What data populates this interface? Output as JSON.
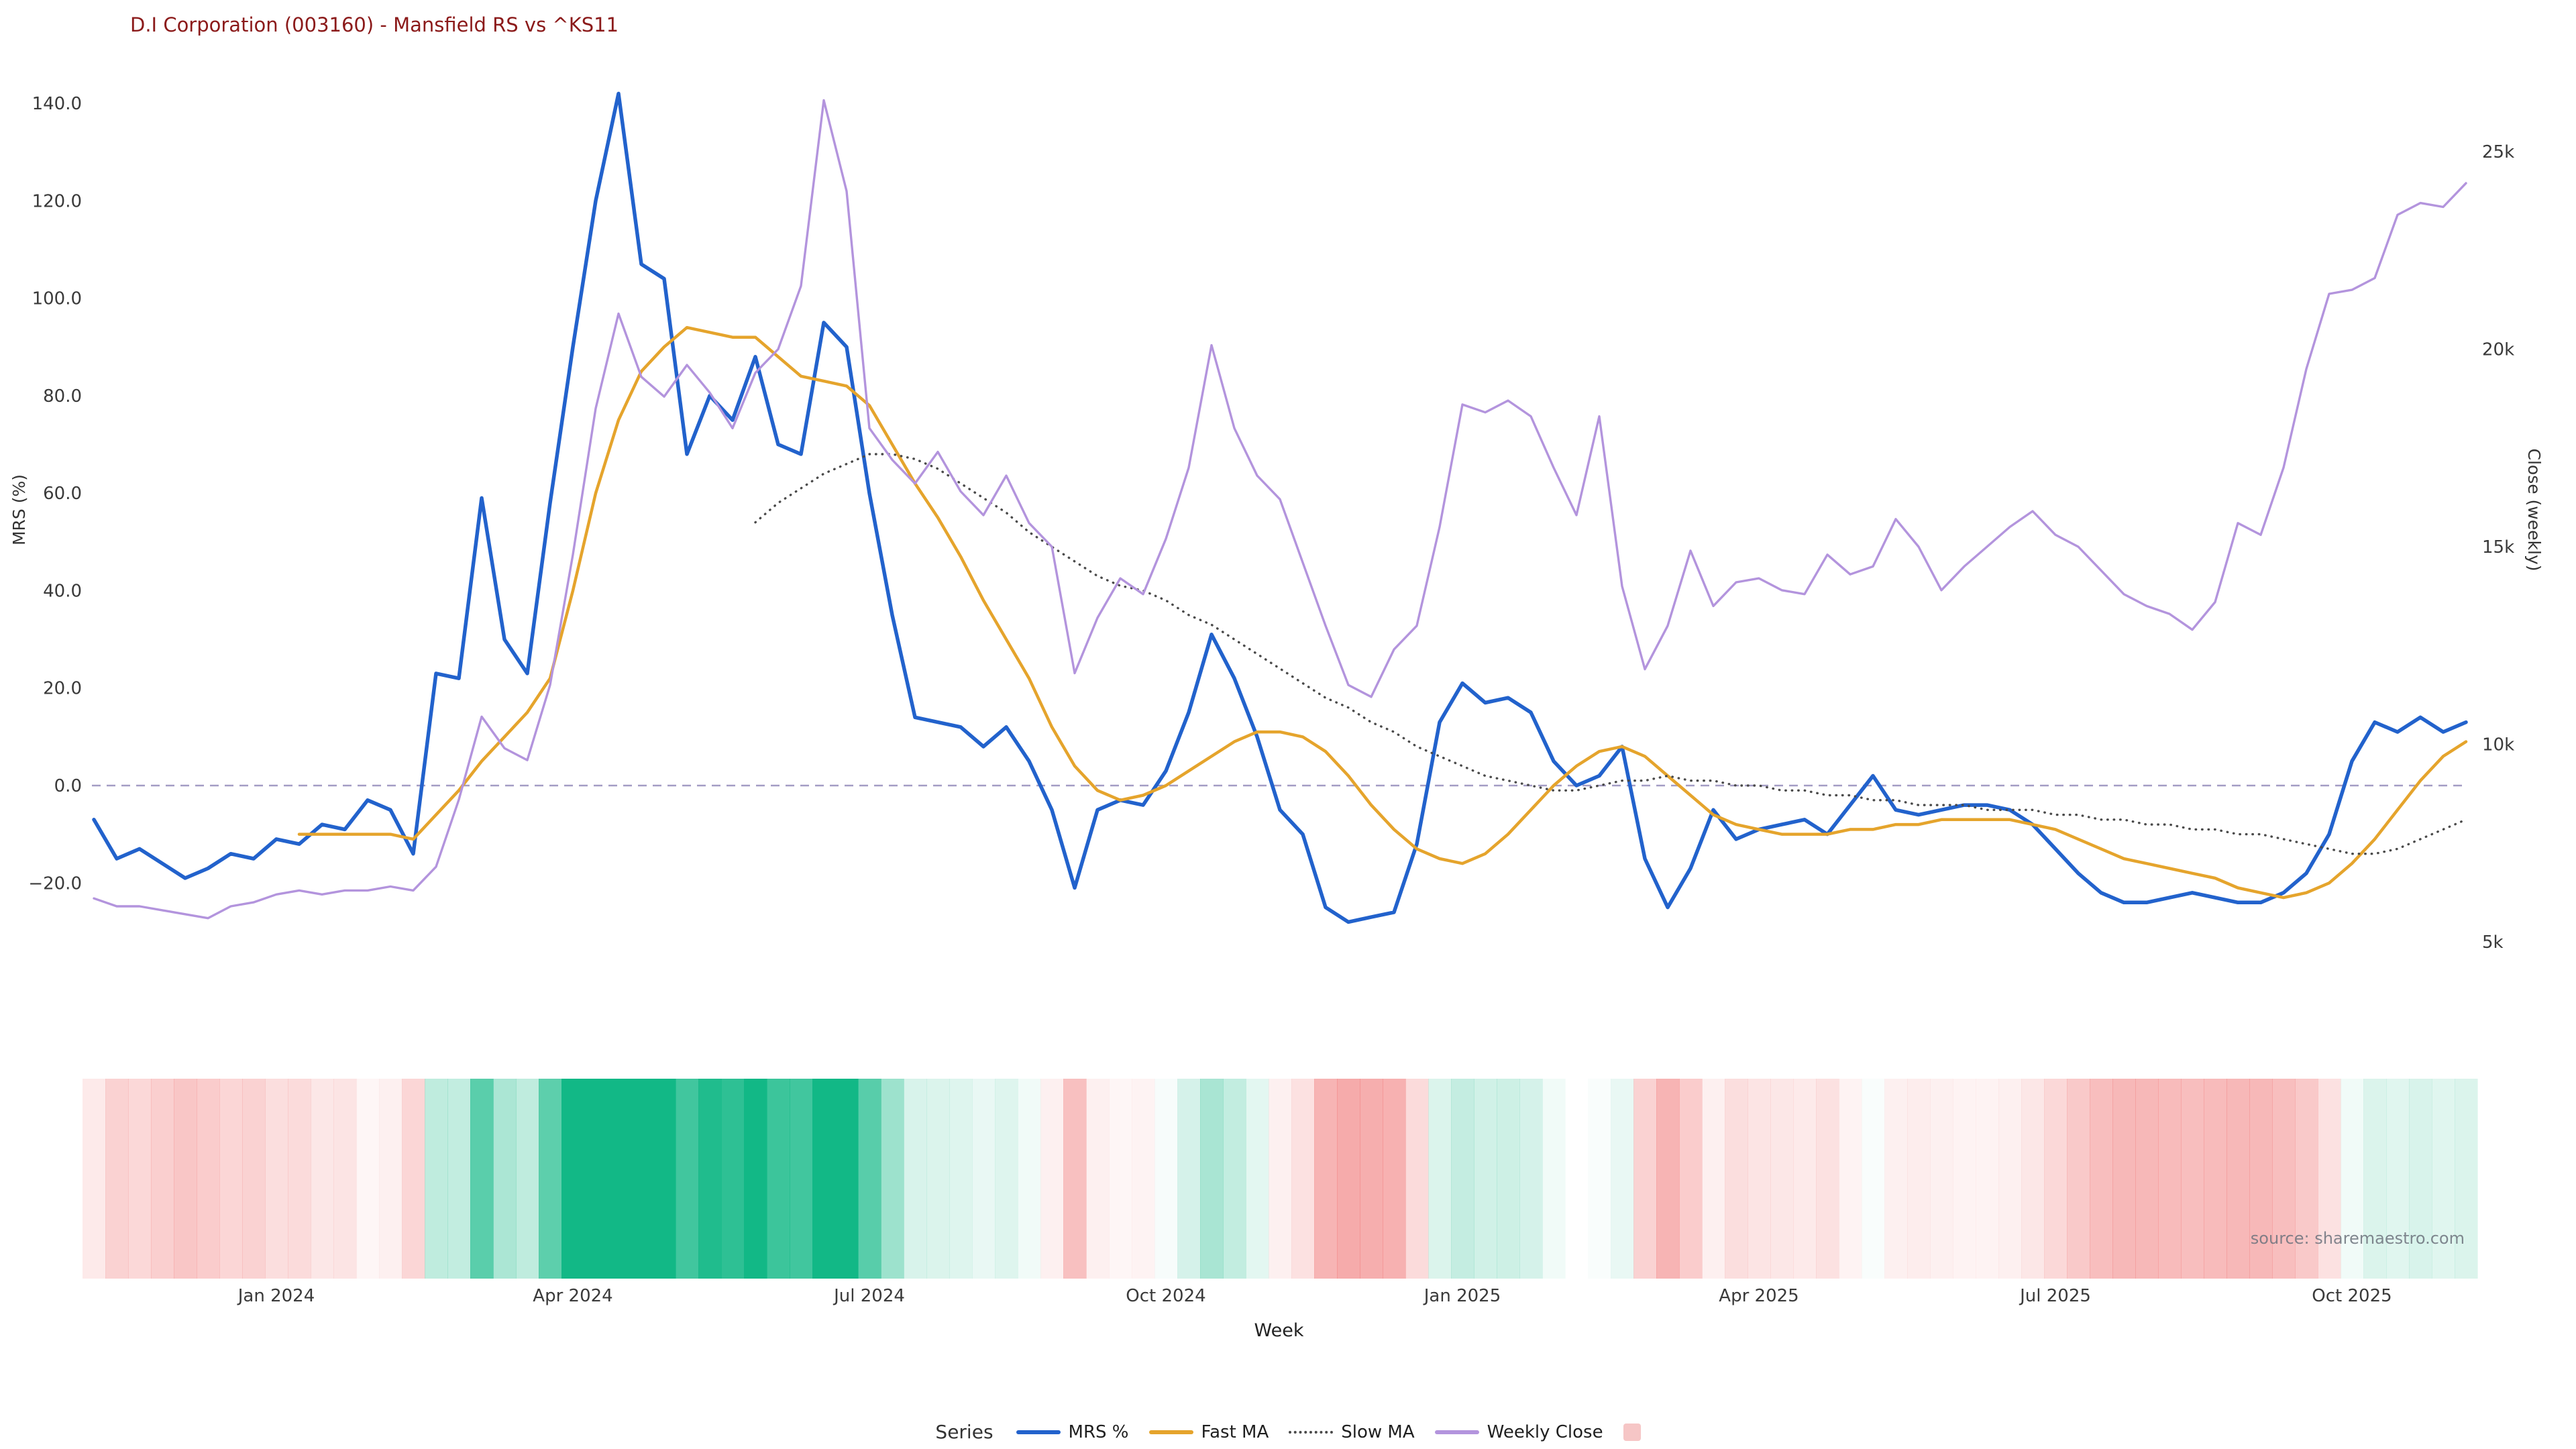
{
  "title": "D.I Corporation (003160) - Mansfield RS vs ^KS11",
  "source_watermark": "source: sharemaestro.com",
  "axes": {
    "x_label": "Week",
    "left_label": "MRS (%)",
    "right_label": "Close (weekly)",
    "left_ticks": [
      "140.0",
      "120.0",
      "100.0",
      "80.0",
      "60.0",
      "40.0",
      "20.0",
      "0.0",
      "−20.0"
    ],
    "right_ticks": [
      "25k",
      "20k",
      "15k",
      "10k",
      "5k"
    ],
    "x_ticks": [
      "Jan 2024",
      "Apr 2024",
      "Jul 2024",
      "Oct 2024",
      "Jan 2025",
      "Apr 2025",
      "Jul 2025",
      "Oct 2025"
    ]
  },
  "legend": {
    "title": "Series",
    "items": [
      {
        "label": "MRS %",
        "swatch": "line",
        "color": "#2262cc"
      },
      {
        "label": "Fast MA",
        "swatch": "line",
        "color": "#e5a42c"
      },
      {
        "label": "Slow MA",
        "swatch": "dotted-line",
        "color": "#4a4a4a"
      },
      {
        "label": "Weekly Close",
        "swatch": "line",
        "color": "#b394dd"
      },
      {
        "label": "",
        "swatch": "square",
        "color": "#f6c6c6"
      }
    ]
  },
  "colors": {
    "title": "#8b1a1a",
    "zero_line": "#a39cc4",
    "tick_text": "#3a3a3a",
    "heatmap_positive": "#12b886",
    "heatmap_negative": "#ef6a6a"
  },
  "chart_data": {
    "type": "line",
    "title": "D.I Corporation (003160) - Mansfield RS vs ^KS11",
    "x_unit": "week",
    "n_points": 105,
    "x_tick_indices": [
      8,
      21,
      34,
      47,
      60,
      73,
      86,
      99
    ],
    "x_tick_labels": [
      "Jan 2024",
      "Apr 2024",
      "Jul 2024",
      "Oct 2024",
      "Jan 2025",
      "Apr 2025",
      "Jul 2025",
      "Oct 2025"
    ],
    "left_axis": {
      "label": "MRS (%)",
      "ticks": [
        140,
        120,
        100,
        80,
        60,
        40,
        20,
        0,
        -20
      ],
      "range": [
        -32,
        148
      ],
      "grid": false
    },
    "right_axis": {
      "label": "Close (weekly)",
      "ticks_k": [
        25,
        20,
        15,
        10,
        5
      ],
      "range_k": [
        4.5,
        26.5
      ]
    },
    "zero_reference_line": {
      "axis": "left",
      "value": 0,
      "style": "dashed"
    },
    "series": [
      {
        "name": "MRS %",
        "axis": "left",
        "color": "#2262cc",
        "style": "solid",
        "width": 5.5,
        "values": [
          -7,
          -15,
          -13,
          -16,
          -19,
          -17,
          -14,
          -15,
          -11,
          -12,
          -8,
          -9,
          -3,
          -5,
          -14,
          23,
          22,
          59,
          30,
          23,
          58,
          90,
          120,
          142,
          107,
          104,
          68,
          80,
          75,
          88,
          70,
          68,
          95,
          90,
          60,
          35,
          14,
          13,
          12,
          8,
          12,
          5,
          -5,
          -21,
          -5,
          -3,
          -4,
          3,
          15,
          31,
          22,
          10,
          -5,
          -10,
          -25,
          -28,
          -27,
          -26,
          -12,
          13,
          21,
          17,
          18,
          15,
          5,
          0,
          2,
          8,
          -15,
          -25,
          -17,
          -5,
          -11,
          -9,
          -8,
          -7,
          -10,
          -4,
          2,
          -5,
          -6,
          -5,
          -4,
          -4,
          -5,
          -8,
          -13,
          -18,
          -22,
          -24,
          -24,
          -23,
          -22,
          -23,
          -24,
          -24,
          -22,
          -18,
          -10,
          5,
          13,
          11,
          14,
          11,
          13
        ]
      },
      {
        "name": "Fast MA",
        "axis": "left",
        "color": "#e5a42c",
        "style": "solid",
        "width": 4.5,
        "values": [
          null,
          null,
          null,
          null,
          null,
          null,
          null,
          null,
          null,
          -10,
          -10,
          -10,
          -10,
          -10,
          -11,
          -6,
          -1,
          5,
          10,
          15,
          22,
          40,
          60,
          75,
          85,
          90,
          94,
          93,
          92,
          92,
          88,
          84,
          83,
          82,
          78,
          70,
          62,
          55,
          47,
          38,
          30,
          22,
          12,
          4,
          -1,
          -3,
          -2,
          0,
          3,
          6,
          9,
          11,
          11,
          10,
          7,
          2,
          -4,
          -9,
          -13,
          -15,
          -16,
          -14,
          -10,
          -5,
          0,
          4,
          7,
          8,
          6,
          2,
          -2,
          -6,
          -8,
          -9,
          -10,
          -10,
          -10,
          -9,
          -9,
          -8,
          -8,
          -7,
          -7,
          -7,
          -7,
          -8,
          -9,
          -11,
          -13,
          -15,
          -16,
          -17,
          -18,
          -19,
          -21,
          -22,
          -23,
          -22,
          -20,
          -16,
          -11,
          -5,
          1,
          6,
          9
        ]
      },
      {
        "name": "Slow MA",
        "axis": "left",
        "color": "#4a4a4a",
        "style": "dotted",
        "width": 3.4,
        "values": [
          null,
          null,
          null,
          null,
          null,
          null,
          null,
          null,
          null,
          null,
          null,
          null,
          null,
          null,
          null,
          null,
          null,
          null,
          null,
          null,
          null,
          null,
          null,
          null,
          null,
          null,
          null,
          null,
          null,
          54,
          58,
          61,
          64,
          66,
          68,
          68,
          67,
          65,
          62,
          59,
          56,
          52,
          49,
          46,
          43,
          41,
          40,
          38,
          35,
          33,
          30,
          27,
          24,
          21,
          18,
          16,
          13,
          11,
          8,
          6,
          4,
          2,
          1,
          0,
          -1,
          -1,
          0,
          1,
          1,
          2,
          1,
          1,
          0,
          0,
          -1,
          -1,
          -2,
          -2,
          -3,
          -3,
          -4,
          -4,
          -4,
          -5,
          -5,
          -5,
          -6,
          -6,
          -7,
          -7,
          -8,
          -8,
          -9,
          -9,
          -10,
          -10,
          -11,
          -12,
          -13,
          -14,
          -14,
          -13,
          -11,
          -9,
          -7
        ]
      },
      {
        "name": "Weekly Close",
        "axis": "right",
        "color": "#b394dd",
        "style": "solid",
        "width": 3.4,
        "values": [
          6.1,
          5.9,
          5.9,
          5.8,
          5.7,
          5.6,
          5.9,
          6.0,
          6.2,
          6.3,
          6.2,
          6.3,
          6.3,
          6.4,
          6.3,
          6.9,
          8.6,
          10.7,
          9.9,
          9.6,
          11.5,
          14.8,
          18.5,
          20.9,
          19.3,
          18.8,
          19.6,
          18.9,
          18.0,
          19.4,
          20.0,
          21.6,
          26.3,
          24.0,
          18.0,
          17.2,
          16.6,
          17.4,
          16.4,
          15.8,
          16.8,
          15.6,
          15.0,
          11.8,
          13.2,
          14.2,
          13.8,
          15.2,
          17.0,
          20.1,
          18.0,
          16.8,
          16.2,
          14.6,
          13.0,
          11.5,
          11.2,
          12.4,
          13.0,
          15.5,
          18.6,
          18.4,
          18.7,
          18.3,
          17.0,
          15.8,
          18.3,
          14.0,
          11.9,
          13.0,
          14.9,
          13.5,
          14.1,
          14.2,
          13.9,
          13.8,
          14.8,
          14.3,
          14.5,
          15.7,
          15.0,
          13.9,
          14.5,
          15.0,
          15.5,
          15.9,
          15.3,
          15.0,
          14.4,
          13.8,
          13.5,
          13.3,
          12.9,
          13.6,
          15.6,
          15.3,
          17.0,
          19.5,
          21.4,
          21.5,
          21.8,
          23.4,
          23.7,
          23.6,
          24.2
        ]
      }
    ],
    "heatmap": {
      "source_series": "MRS %",
      "positive_color": "#12b886",
      "negative_color": "#ef6a6a",
      "encoding": "band opacity proportional to |MRS %| per week"
    }
  }
}
